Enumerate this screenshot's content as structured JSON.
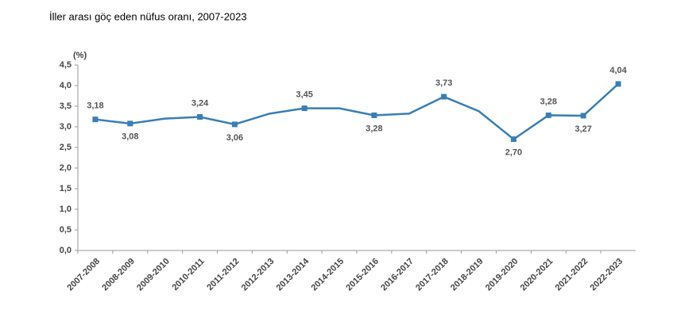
{
  "chart_data": {
    "type": "line",
    "title": "İller arası göç eden nüfus oranı, 2007-2023",
    "y_label": "(%)",
    "categories": [
      "2007-2008",
      "2008-2009",
      "2009-2010",
      "2010-2011",
      "2011-2012",
      "2012-2013",
      "2013-2014",
      "2014-2015",
      "2015-2016",
      "2016-2017",
      "2017-2018",
      "2018-2019",
      "2019-2020",
      "2020-2021",
      "2021-2022",
      "2022-2023"
    ],
    "series": [
      {
        "name": "İller arası göç eden nüfus oranı",
        "color": "#3a7eb5",
        "values": [
          3.18,
          3.08,
          3.2,
          3.24,
          3.06,
          3.32,
          3.45,
          3.45,
          3.28,
          3.32,
          3.73,
          3.38,
          2.7,
          3.28,
          3.27,
          4.04
        ],
        "value_labels": [
          "3,18",
          "3,08",
          null,
          "3,24",
          "3,06",
          null,
          "3,45",
          null,
          "3,28",
          null,
          "3,73",
          null,
          "2,70",
          "3,28",
          "3,27",
          "4,04"
        ]
      }
    ],
    "ylim": [
      0,
      4.5
    ],
    "yticks": [
      {
        "value": 0,
        "label": "0,0"
      },
      {
        "value": 0.5,
        "label": "0,5"
      },
      {
        "value": 1,
        "label": "1,0"
      },
      {
        "value": 1.5,
        "label": "1,5"
      },
      {
        "value": 2,
        "label": "2,0"
      },
      {
        "value": 2.5,
        "label": "2,5"
      },
      {
        "value": 3,
        "label": "3,0"
      },
      {
        "value": 3.5,
        "label": "3,5"
      },
      {
        "value": 4,
        "label": "4,0"
      },
      {
        "value": 4.5,
        "label": "4,5"
      }
    ],
    "grid": false
  }
}
